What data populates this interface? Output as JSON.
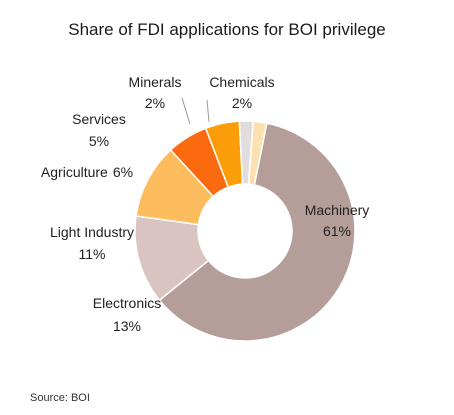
{
  "title": "Share of FDI applications for BOI privilege",
  "source": "Source: BOI",
  "chart_data": {
    "type": "pie",
    "donut": true,
    "title": "Share of FDI applications for BOI privilege",
    "legend": "none (labels beside slices)",
    "slices": [
      {
        "label": "Machinery",
        "value": 61,
        "value_text": "61%",
        "color": "#b59d99"
      },
      {
        "label": "Electronics",
        "value": 13,
        "value_text": "13%",
        "color": "#d9c4c2"
      },
      {
        "label": "Light Industry",
        "value": 11,
        "value_text": "11%",
        "color": "#fdbd5e"
      },
      {
        "label": "Agriculture",
        "value": 6,
        "value_text": "6%",
        "color": "#fb6a0e"
      },
      {
        "label": "Services",
        "value": 5,
        "value_text": "5%",
        "color": "#fc9d0a"
      },
      {
        "label": "Minerals",
        "value": 2,
        "value_text": "2%",
        "color": "#e3dcdc"
      },
      {
        "label": "Chemicals",
        "value": 2,
        "value_text": "2%",
        "color": "#fde0b2"
      }
    ]
  }
}
